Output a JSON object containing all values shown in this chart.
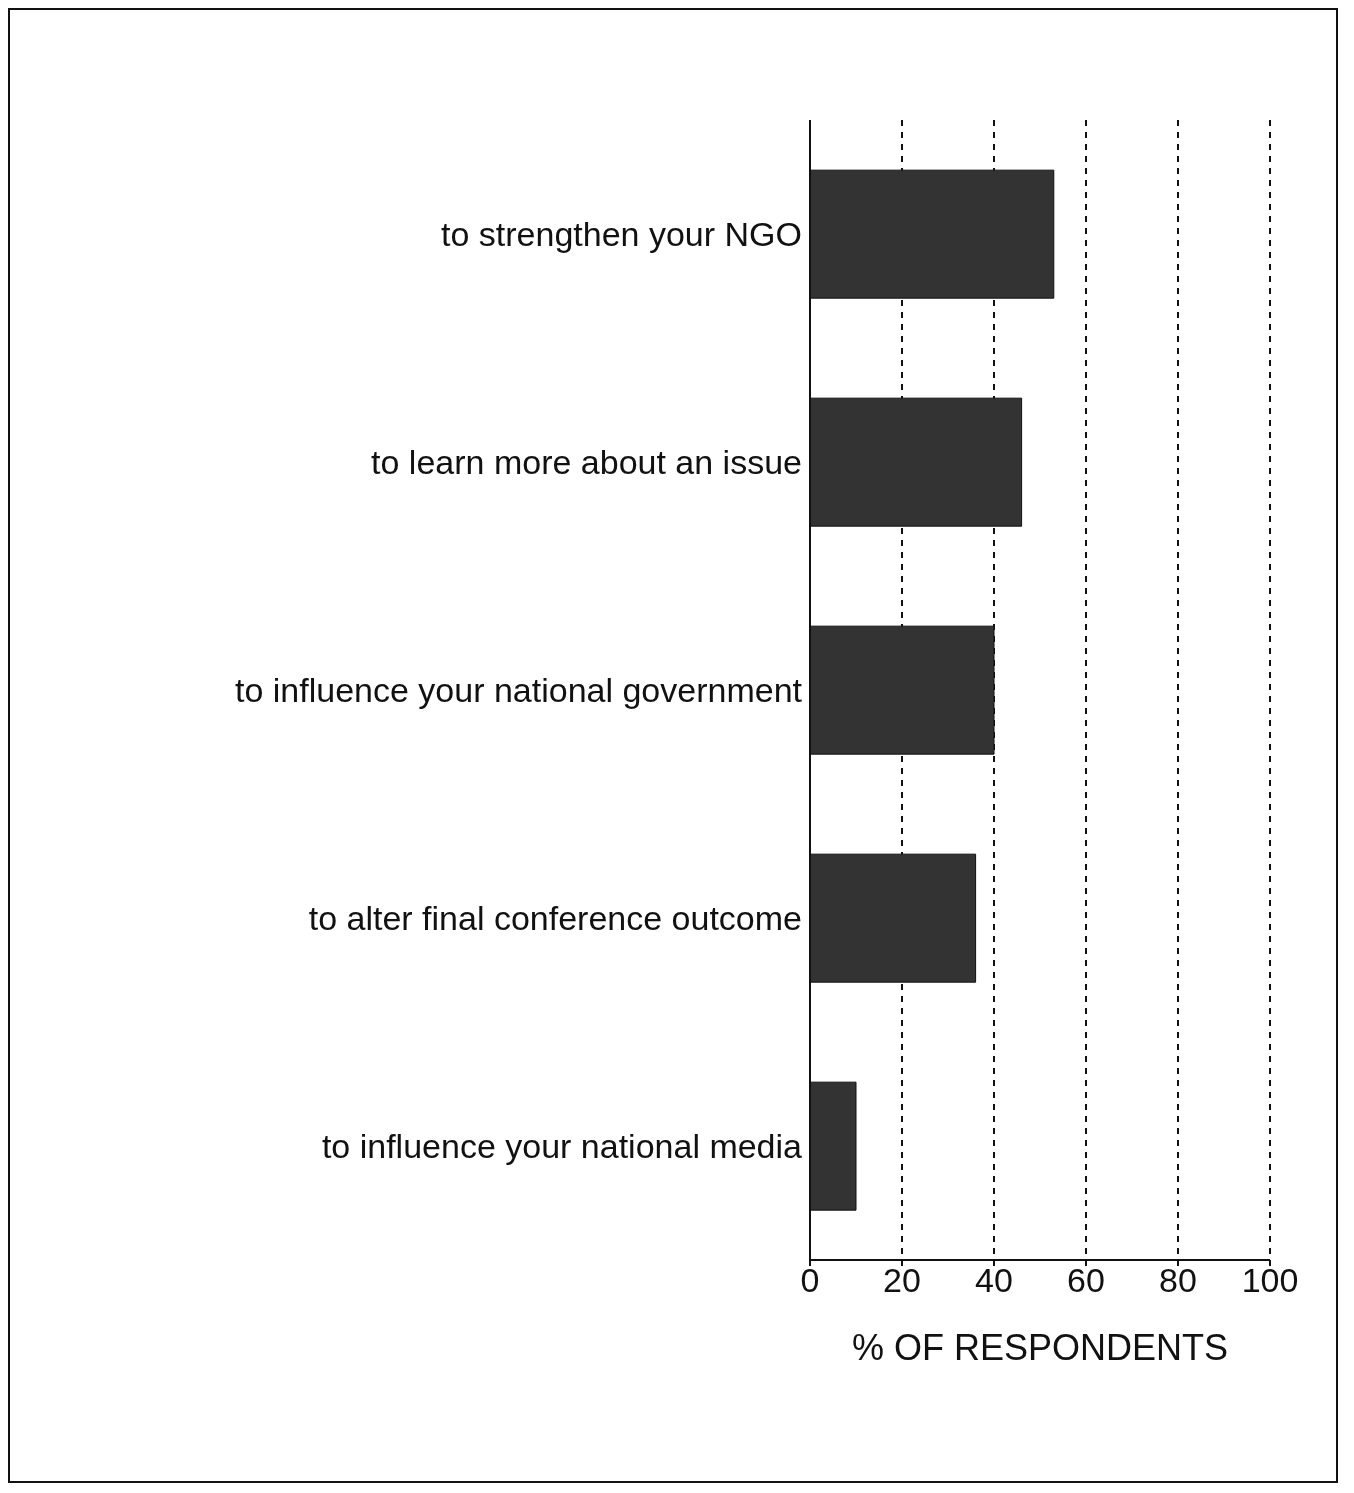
{
  "chart_data": {
    "type": "bar",
    "orientation": "horizontal",
    "xlabel": "% OF RESPONDENTS",
    "categories": [
      "to strengthen your NGO",
      "to learn more about an issue",
      "to influence your national government",
      "to alter final conference outcome",
      "to influence your national media"
    ],
    "values": [
      53,
      46,
      40,
      36,
      10
    ],
    "color": "#333333",
    "xlim": [
      0,
      100
    ],
    "xticks": [
      0,
      20,
      40,
      60,
      80,
      100
    ],
    "grid": "x",
    "legend": false
  }
}
